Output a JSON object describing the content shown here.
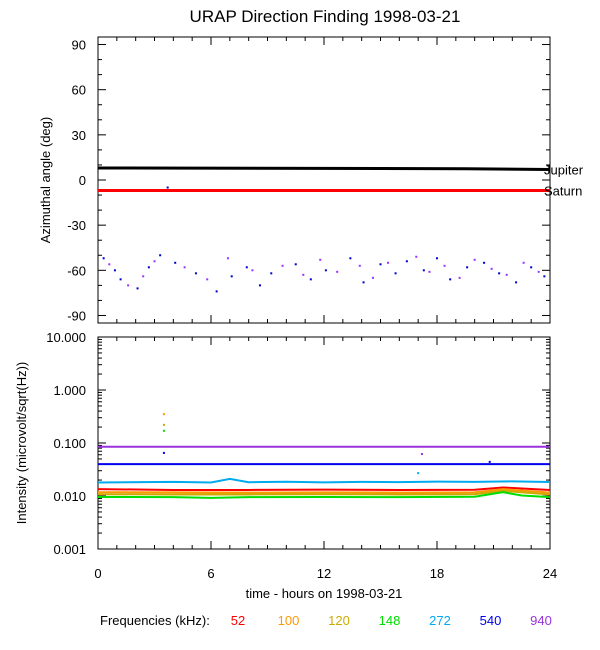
{
  "chart_data": [
    {
      "type": "scatter",
      "title": "URAP Direction Finding  1998-03-21",
      "ylabel": "Azimuthal angle (deg)",
      "xlim": [
        0,
        24
      ],
      "ylim": [
        -95,
        95
      ],
      "yticks": [
        90,
        60,
        30,
        0,
        -30,
        -60,
        -90
      ],
      "grid": false,
      "series": [
        {
          "name": "Jupiter",
          "color": "#000000",
          "x": [
            0,
            19.5,
            24
          ],
          "y": [
            8,
            7.5,
            7
          ]
        },
        {
          "name": "Saturn",
          "color": "#ff0000",
          "x": [
            0,
            24
          ],
          "y": [
            -7,
            -7
          ]
        },
        {
          "color": "#0000cc",
          "x": [
            0.3,
            0.9,
            1.2,
            2.1,
            2.7,
            3.3,
            4.1,
            5.2,
            6.3,
            7.1,
            7.9,
            8.6,
            9.2,
            10.5,
            11.3,
            12.1,
            13.4,
            14.1,
            15.0,
            15.8,
            16.4,
            17.3,
            18.0,
            18.7,
            19.6,
            20.5,
            21.3,
            22.2,
            23.0,
            23.7,
            3.7
          ],
          "y": [
            -52,
            -60,
            -66,
            -72,
            -58,
            -50,
            -55,
            -62,
            -74,
            -64,
            -58,
            -70,
            -62,
            -56,
            -66,
            -60,
            -52,
            -68,
            -56,
            -62,
            -54,
            -60,
            -52,
            -66,
            -58,
            -55,
            -62,
            -68,
            -58,
            -64,
            -5
          ]
        },
        {
          "color": "#9933ff",
          "x": [
            0.6,
            1.6,
            2.4,
            3.0,
            4.6,
            5.8,
            6.9,
            8.2,
            9.8,
            10.9,
            11.8,
            12.7,
            13.9,
            14.6,
            15.4,
            16.9,
            17.6,
            18.4,
            19.2,
            20.0,
            20.9,
            21.7,
            22.6,
            23.4
          ],
          "y": [
            -56,
            -70,
            -64,
            -54,
            -58,
            -66,
            -52,
            -60,
            -57,
            -63,
            -53,
            -61,
            -57,
            -65,
            -55,
            -51,
            -61,
            -57,
            -65,
            -53,
            -59,
            -63,
            -55,
            -61
          ]
        }
      ]
    },
    {
      "type": "line",
      "xlabel": "time - hours on 1998-03-21",
      "ylabel": "Intensity (microvolt/sqrt(Hz))",
      "xlim": [
        0,
        24
      ],
      "ylim": [
        0.001,
        10
      ],
      "yscale": "log",
      "xticks": [
        0,
        6,
        12,
        18,
        24
      ],
      "yticks": [
        10,
        1,
        0.1,
        0.01,
        0.001
      ],
      "ytick_labels": [
        "10.000",
        "1.000",
        "0.100",
        "0.010",
        "0.001"
      ],
      "grid": false,
      "legend_title": "Frequencies (kHz):",
      "legend_placement": "bottom",
      "series": [
        {
          "name": "52",
          "color": "#ff0000",
          "x": [
            0,
            4,
            8,
            12,
            16,
            20,
            21.5,
            24
          ],
          "y": [
            0.0135,
            0.013,
            0.013,
            0.0132,
            0.013,
            0.0131,
            0.0145,
            0.013
          ]
        },
        {
          "name": "100",
          "color": "#ff9900",
          "x": [
            0,
            4,
            8,
            12,
            16,
            20,
            21.5,
            24
          ],
          "y": [
            0.0118,
            0.0117,
            0.0116,
            0.0117,
            0.0116,
            0.0117,
            0.0135,
            0.0116
          ]
        },
        {
          "name": "120",
          "color": "#ccaa00",
          "x": [
            0,
            4,
            8,
            12,
            16,
            20,
            21.5,
            24
          ],
          "y": [
            0.0108,
            0.0107,
            0.0107,
            0.0108,
            0.0107,
            0.0108,
            0.0125,
            0.0107
          ]
        },
        {
          "name": "148",
          "color": "#00dd00",
          "x": [
            0,
            4,
            6,
            8,
            12,
            16,
            20,
            21.5,
            22.5,
            24
          ],
          "y": [
            0.0096,
            0.0095,
            0.0092,
            0.0095,
            0.0096,
            0.0095,
            0.0097,
            0.0118,
            0.0102,
            0.0095
          ]
        },
        {
          "name": "272",
          "color": "#00aaee",
          "x": [
            0,
            4,
            6,
            7,
            8,
            10,
            12,
            14,
            16,
            18,
            20,
            22,
            24
          ],
          "y": [
            0.018,
            0.0185,
            0.018,
            0.021,
            0.0182,
            0.0186,
            0.0181,
            0.0185,
            0.0183,
            0.0187,
            0.0185,
            0.0189,
            0.0184
          ]
        },
        {
          "name": "540",
          "color": "#0000ee",
          "x": [
            0,
            24
          ],
          "y": [
            0.04,
            0.04
          ]
        },
        {
          "name": "940",
          "color": "#9933dd",
          "x": [
            0,
            24
          ],
          "y": [
            0.085,
            0.085
          ]
        }
      ],
      "annotations": [
        {
          "x": 3.5,
          "y": 0.35,
          "color": "#ff9900"
        },
        {
          "x": 3.5,
          "y": 0.22,
          "color": "#ccaa00"
        },
        {
          "x": 3.5,
          "y": 0.17,
          "color": "#00dd00"
        },
        {
          "x": 3.5,
          "y": 0.065,
          "color": "#0000ee"
        },
        {
          "x": 17.2,
          "y": 0.062,
          "color": "#9933dd"
        },
        {
          "x": 17.0,
          "y": 0.027,
          "color": "#00aaee"
        },
        {
          "x": 20.8,
          "y": 0.044,
          "color": "#0000ee"
        }
      ]
    }
  ]
}
